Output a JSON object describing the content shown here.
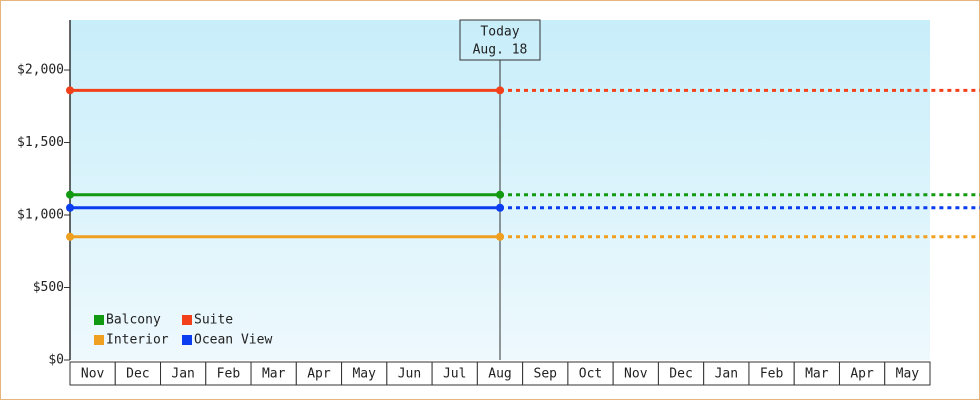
{
  "chart_data": {
    "type": "line",
    "categories": [
      "Nov",
      "Dec",
      "Jan",
      "Feb",
      "Mar",
      "Apr",
      "May",
      "Jun",
      "Jul",
      "Aug",
      "Sep",
      "Oct",
      "Nov",
      "Dec",
      "Jan",
      "Feb",
      "Mar",
      "Apr",
      "May"
    ],
    "series": [
      {
        "name": "Balcony",
        "color": "#119a11",
        "values": [
          1140,
          1140,
          1140,
          1140,
          1140,
          1140,
          1140,
          1140,
          1140,
          1140,
          1140,
          1140,
          1140,
          1140,
          1140,
          1140,
          1140,
          1140,
          1140
        ]
      },
      {
        "name": "Suite",
        "color": "#f2401a",
        "values": [
          1860,
          1860,
          1860,
          1860,
          1860,
          1860,
          1860,
          1860,
          1860,
          1860,
          1860,
          1860,
          1860,
          1860,
          1860,
          1860,
          1860,
          1860,
          1860
        ]
      },
      {
        "name": "Interior",
        "color": "#f0a020",
        "values": [
          850,
          850,
          850,
          850,
          850,
          850,
          850,
          850,
          850,
          850,
          850,
          850,
          850,
          850,
          850,
          850,
          850,
          850,
          850
        ]
      },
      {
        "name": "Ocean View",
        "color": "#0a3cf0",
        "values": [
          1050,
          1050,
          1050,
          1050,
          1050,
          1050,
          1050,
          1050,
          1050,
          1050,
          1050,
          1050,
          1050,
          1050,
          1050,
          1050,
          1050,
          1050,
          1050
        ]
      }
    ],
    "ylim": [
      0,
      2345
    ],
    "yticks": [
      {
        "value": 0,
        "label": "$0"
      },
      {
        "value": 500,
        "label": "$500"
      },
      {
        "value": 1000,
        "label": "$1,000"
      },
      {
        "value": 1500,
        "label": "$1,500"
      },
      {
        "value": 2000,
        "label": "$2,000"
      }
    ],
    "annotation": {
      "lines": [
        "Today",
        "Aug. 18"
      ],
      "category_index": 9
    }
  }
}
